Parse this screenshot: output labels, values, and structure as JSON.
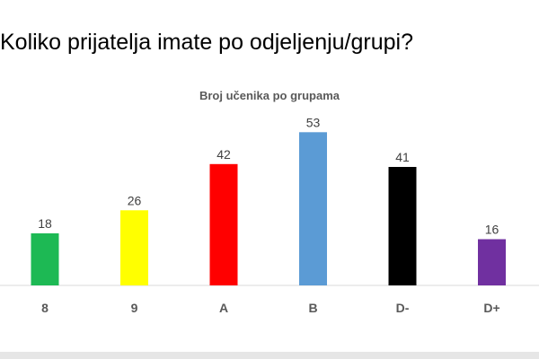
{
  "slide": {
    "title": "Koliko prijatelja imate po odjeljenju/grupi?"
  },
  "colors": {
    "axis": "#d9d9d9",
    "label": "#404040",
    "tick_label": "#595959",
    "background": "#ffffff"
  },
  "chart_data": {
    "type": "bar",
    "title": "Broj učenika po grupama",
    "xlabel": "",
    "ylabel": "",
    "categories": [
      "8",
      "9",
      "A",
      "B",
      "D-",
      "D+"
    ],
    "values": [
      18,
      26,
      42,
      53,
      41,
      16
    ],
    "bar_colors": [
      "#1db954",
      "#ffff00",
      "#ff0000",
      "#5b9bd5",
      "#000000",
      "#7030a0"
    ],
    "ylim": [
      0,
      60
    ],
    "grid": false,
    "legend": "none",
    "data_labels": true
  }
}
